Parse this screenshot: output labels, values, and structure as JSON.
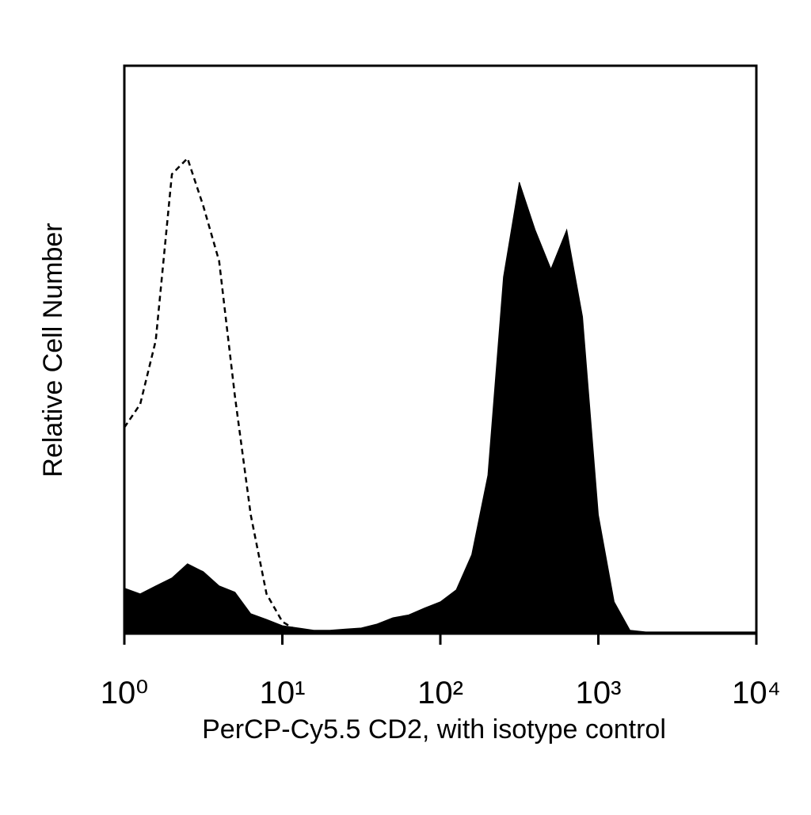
{
  "chart_data": {
    "type": "histogram",
    "x_label": "PerCP-Cy5.5 CD2, with isotype control",
    "y_label": "Relative Cell Number",
    "x_scale": "log",
    "xlim": [
      1,
      10000
    ],
    "xticks": [
      {
        "value": 1,
        "label": "10⁰"
      },
      {
        "value": 10,
        "label": "10¹"
      },
      {
        "value": 100,
        "label": "10²"
      },
      {
        "value": 1000,
        "label": "10³"
      },
      {
        "value": 10000,
        "label": "10⁴"
      }
    ],
    "ylim": [
      0,
      100
    ],
    "x": [
      1,
      1.26,
      1.58,
      2,
      2.51,
      3.16,
      3.98,
      5.01,
      6.31,
      7.94,
      10,
      12.6,
      15.8,
      20,
      25.1,
      31.6,
      39.8,
      50.1,
      63.1,
      79.4,
      100,
      126,
      158,
      200,
      251,
      316,
      398,
      501,
      631,
      794,
      1000,
      1259,
      1585,
      1995,
      2512,
      3162,
      3981,
      5012,
      6310,
      7943,
      10000
    ],
    "series": [
      {
        "color": "#000000",
        "style": "filled",
        "values": [
          8,
          7,
          8.4,
          9.8,
          12.3,
          10.9,
          8.4,
          7.3,
          3.5,
          2.5,
          1.4,
          1,
          0.6,
          0.6,
          0.8,
          1,
          1.7,
          2.8,
          3.3,
          4.5,
          5.6,
          7.7,
          13.9,
          27.9,
          62.8,
          79.5,
          71.1,
          64.2,
          71.1,
          55.8,
          20.9,
          5.6,
          0.6,
          0.3,
          0.3,
          0.3,
          0.3,
          0.3,
          0.3,
          0.3,
          0.3
        ]
      },
      {
        "color": "#000000",
        "style": "dashed",
        "values": [
          36.3,
          40.4,
          51.6,
          80.9,
          83.7,
          75.3,
          65.6,
          41.8,
          20.9,
          7,
          2.1,
          0.4,
          null,
          null,
          null,
          null,
          null,
          null,
          null,
          null,
          null,
          null,
          null,
          null,
          null,
          null,
          null,
          null,
          null,
          null,
          null,
          null,
          null,
          null,
          null,
          null,
          null,
          null,
          null,
          null,
          null
        ]
      }
    ]
  }
}
